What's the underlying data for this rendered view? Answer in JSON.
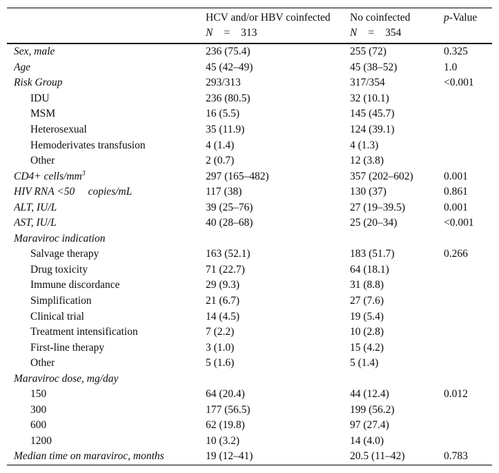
{
  "colors": {
    "text": "#0c0c0c",
    "rule": "#000000",
    "background": "#ffffff"
  },
  "table": {
    "header": {
      "col1": {
        "title": "HCV and/or HBV coinfected",
        "n_symbol": "N",
        "equals": "=",
        "n_value": "313"
      },
      "col2": {
        "title": "No coinfected",
        "n_symbol": "N",
        "equals": "=",
        "n_value": "354"
      },
      "pvalue": {
        "p": "p",
        "rest": "-Value"
      }
    },
    "rows": [
      {
        "label": "Sex, male",
        "italic": true,
        "indent": false,
        "c1": "236 (75.4)",
        "c2": "255 (72)",
        "p": "0.325"
      },
      {
        "label": "Age",
        "italic": true,
        "indent": false,
        "c1": "45 (42–49)",
        "c2": "45 (38–52)",
        "p": "1.0"
      },
      {
        "label": "Risk Group",
        "italic": true,
        "indent": false,
        "c1": "293/313",
        "c2": "317/354",
        "p": "<0.001"
      },
      {
        "label": "IDU",
        "italic": false,
        "indent": true,
        "c1": "236 (80.5)",
        "c2": "32 (10.1)",
        "p": ""
      },
      {
        "label": "MSM",
        "italic": false,
        "indent": true,
        "c1": "16 (5.5)",
        "c2": "145 (45.7)",
        "p": ""
      },
      {
        "label": "Heterosexual",
        "italic": false,
        "indent": true,
        "c1": "35 (11.9)",
        "c2": "124 (39.1)",
        "p": ""
      },
      {
        "label": "Hemoderivates transfusion",
        "italic": false,
        "indent": true,
        "c1": "4 (1.4)",
        "c2": "4 (1.3)",
        "p": ""
      },
      {
        "label": "Other",
        "italic": false,
        "indent": true,
        "c1": "2 (0.7)",
        "c2": "12 (3.8)",
        "p": ""
      },
      {
        "label": "CD4+ cells/mm",
        "sup": "3",
        "italic": true,
        "indent": false,
        "c1": "297 (165–482)",
        "c2": "357 (202–602)",
        "p": "0.001"
      },
      {
        "label": "HIV RNA <50     copies/mL",
        "italic": true,
        "indent": false,
        "c1": "117 (38)",
        "c2": "130 (37)",
        "p": "0.861"
      },
      {
        "label": "ALT, IU/L",
        "italic": true,
        "indent": false,
        "c1": "39 (25–76)",
        "c2": "27 (19–39.5)",
        "p": "0.001"
      },
      {
        "label": "AST, IU/L",
        "italic": true,
        "indent": false,
        "c1": "40 (28–68)",
        "c2": "25 (20–34)",
        "p": "<0.001"
      },
      {
        "label": "Maraviroc indication",
        "italic": true,
        "indent": false,
        "c1": "",
        "c2": "",
        "p": ""
      },
      {
        "label": "Salvage therapy",
        "italic": false,
        "indent": true,
        "c1": "163 (52.1)",
        "c2": "183 (51.7)",
        "p": "0.266"
      },
      {
        "label": "Drug toxicity",
        "italic": false,
        "indent": true,
        "c1": "71 (22.7)",
        "c2": "64 (18.1)",
        "p": ""
      },
      {
        "label": "Immune discordance",
        "italic": false,
        "indent": true,
        "c1": "29 (9.3)",
        "c2": "31 (8.8)",
        "p": ""
      },
      {
        "label": "Simplification",
        "italic": false,
        "indent": true,
        "c1": "21 (6.7)",
        "c2": "27 (7.6)",
        "p": ""
      },
      {
        "label": "Clinical trial",
        "italic": false,
        "indent": true,
        "c1": "14 (4.5)",
        "c2": "19 (5.4)",
        "p": ""
      },
      {
        "label": "Treatment intensification",
        "italic": false,
        "indent": true,
        "c1": "7 (2.2)",
        "c2": "10 (2.8)",
        "p": ""
      },
      {
        "label": "First-line therapy",
        "italic": false,
        "indent": true,
        "c1": "3 (1.0)",
        "c2": "15 (4.2)",
        "p": ""
      },
      {
        "label": "Other",
        "italic": false,
        "indent": true,
        "c1": "5 (1.6)",
        "c2": "5 (1.4)",
        "p": ""
      },
      {
        "label": "Maraviroc dose, mg/day",
        "italic": true,
        "indent": false,
        "c1": "",
        "c2": "",
        "p": ""
      },
      {
        "label": "150",
        "italic": false,
        "indent": true,
        "c1": "64 (20.4)",
        "c2": "44 (12.4)",
        "p": "0.012"
      },
      {
        "label": "300",
        "italic": false,
        "indent": true,
        "c1": "177 (56.5)",
        "c2": "199 (56.2)",
        "p": ""
      },
      {
        "label": "600",
        "italic": false,
        "indent": true,
        "c1": "62 (19.8)",
        "c2": "97 (27.4)",
        "p": ""
      },
      {
        "label": "1200",
        "italic": false,
        "indent": true,
        "c1": "10 (3.2)",
        "c2": "14 (4.0)",
        "p": ""
      },
      {
        "label": "Median time on maraviroc, months",
        "italic": true,
        "indent": false,
        "c1": "19 (12–41)",
        "c2": "20.5 (11–42)",
        "p": "0.783"
      }
    ]
  }
}
